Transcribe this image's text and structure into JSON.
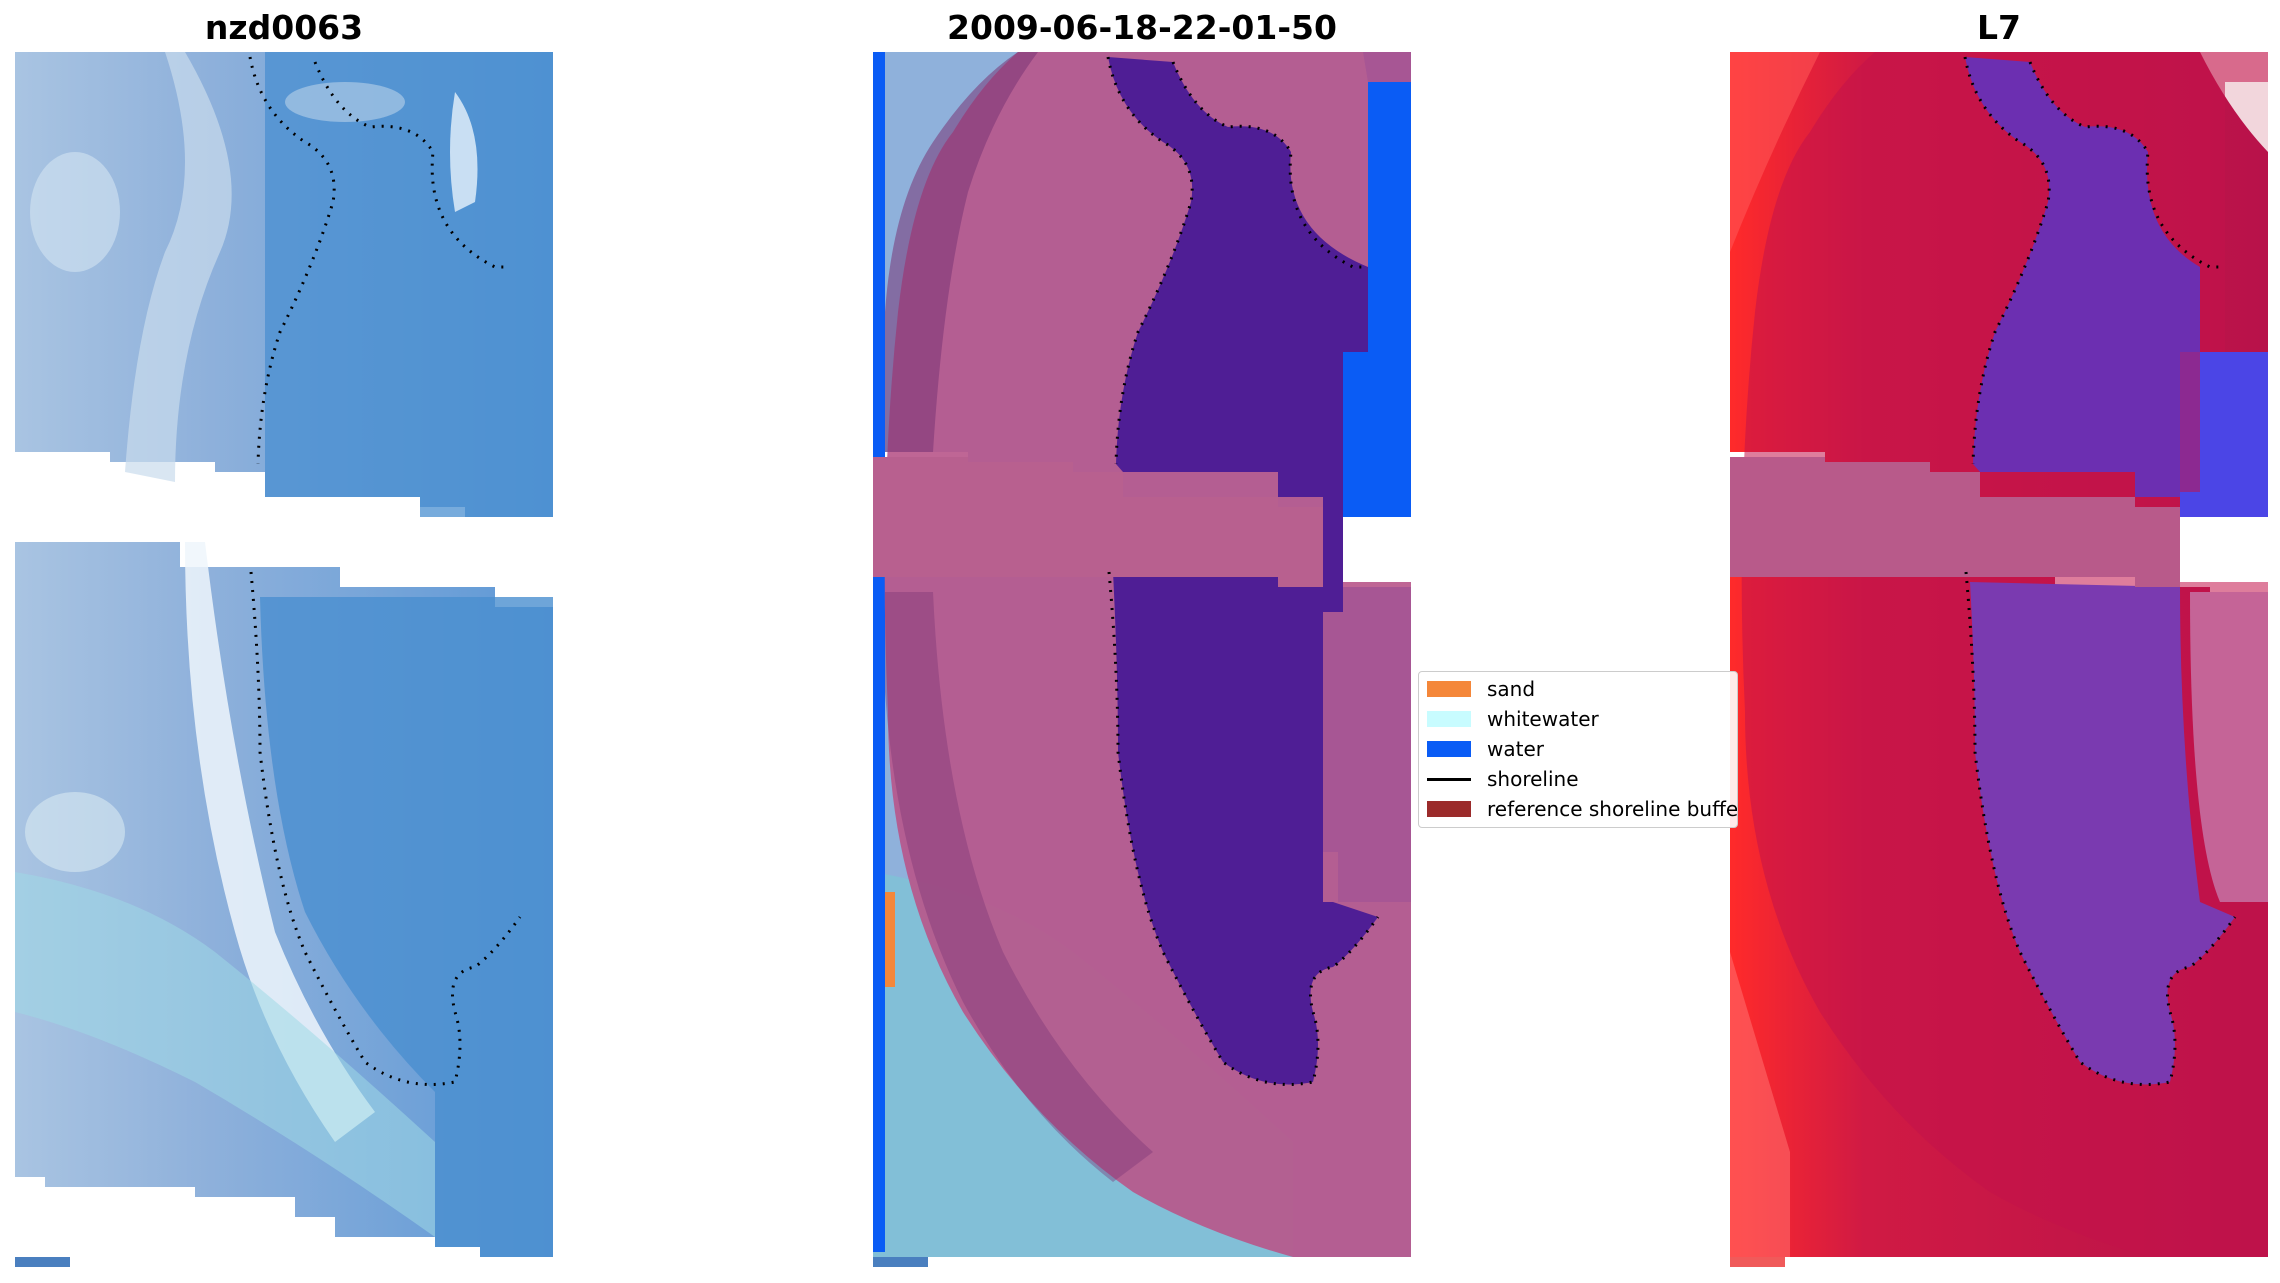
{
  "titles": {
    "left": "nzd0063",
    "center": "2009-06-18-22-01-50",
    "right": "L7"
  },
  "legend": {
    "items": [
      {
        "label": "sand",
        "color": "#f4873a",
        "kind": "patch"
      },
      {
        "label": "whitewater",
        "color": "#c8fcff",
        "kind": "patch"
      },
      {
        "label": "water",
        "color": "#0a5cf5",
        "kind": "patch"
      },
      {
        "label": "shoreline",
        "color": "#000000",
        "kind": "line"
      },
      {
        "label": "reference shoreline buffer",
        "color": "#9b2b2b",
        "kind": "patch"
      }
    ]
  },
  "colors": {
    "rgb_water": "#4a8fd0",
    "rgb_land": "#9cbbe0",
    "buffer_overlay": "#b8558a",
    "water_class": "#0a5cf5",
    "classified_water_in_buffer": "#4f1e95",
    "ndwi_land": "#c2134a",
    "ndwi_water": "#6c2fb1"
  }
}
